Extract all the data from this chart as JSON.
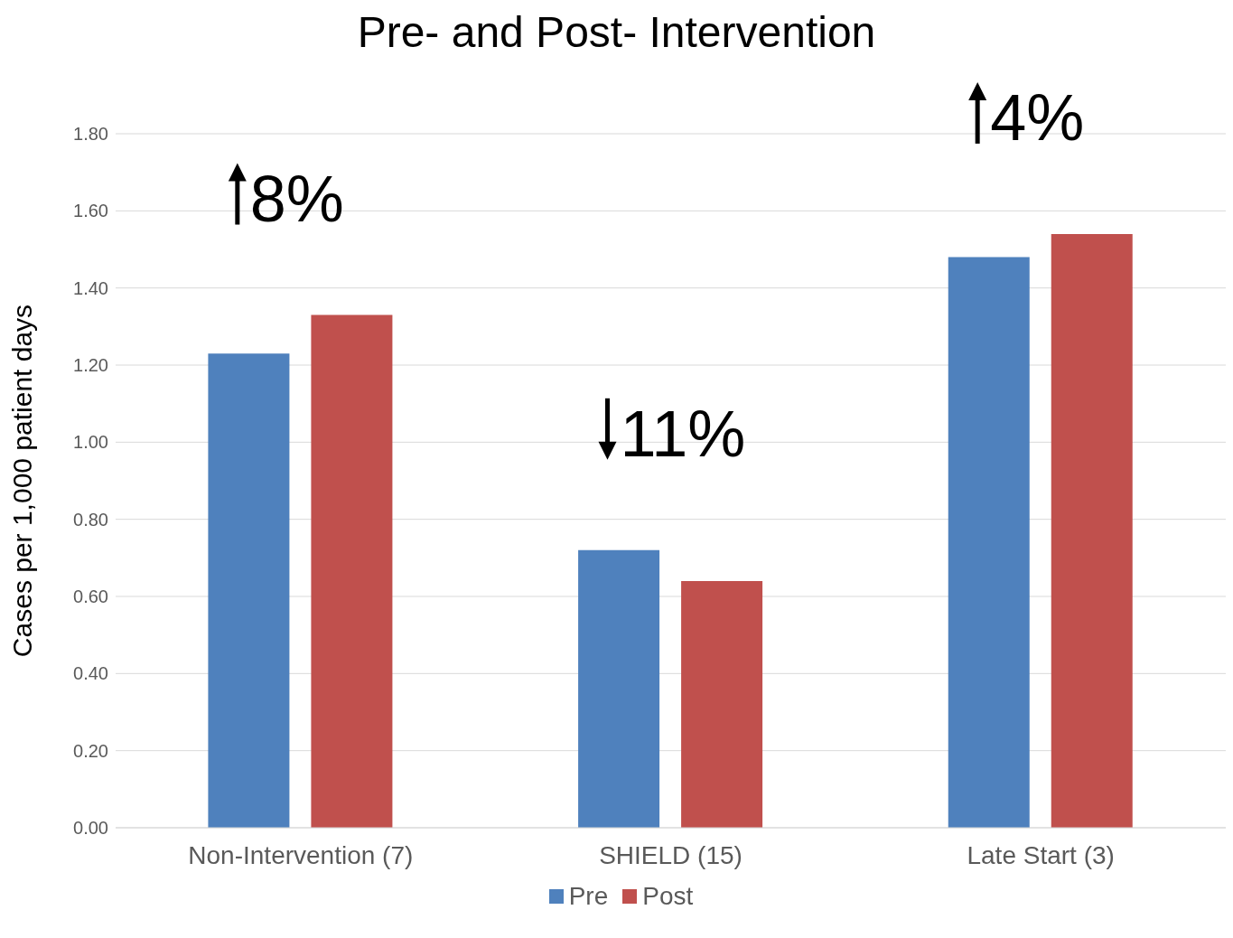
{
  "chart_data": {
    "type": "bar",
    "title": "Pre- and Post- Intervention",
    "ylabel": "Cases per 1,000 patient days",
    "categories": [
      "Non-Intervention (7)",
      "SHIELD (15)",
      "Late Start (3)"
    ],
    "series": [
      {
        "name": "Pre",
        "color": "#4f81bd",
        "values": [
          1.23,
          0.72,
          1.48
        ]
      },
      {
        "name": "Post",
        "color": "#c0504d",
        "values": [
          1.33,
          0.64,
          1.54
        ]
      }
    ],
    "ylim": [
      0,
      1.8
    ],
    "yticks": [
      {
        "value": 0,
        "label": "0.00"
      },
      {
        "value": 0.2,
        "label": "0.20"
      },
      {
        "value": 0.4,
        "label": "0.40"
      },
      {
        "value": 0.6,
        "label": "0.60"
      },
      {
        "value": 0.8,
        "label": "0.80"
      },
      {
        "value": 1.0,
        "label": "1.00"
      },
      {
        "value": 1.2,
        "label": "1.20"
      },
      {
        "value": 1.4,
        "label": "1.40"
      },
      {
        "value": 1.6,
        "label": "1.60"
      },
      {
        "value": 1.8,
        "label": "1.80"
      }
    ],
    "annotations": [
      "8%",
      "11%",
      "4%"
    ],
    "grid": "y",
    "legend": "bottom"
  }
}
